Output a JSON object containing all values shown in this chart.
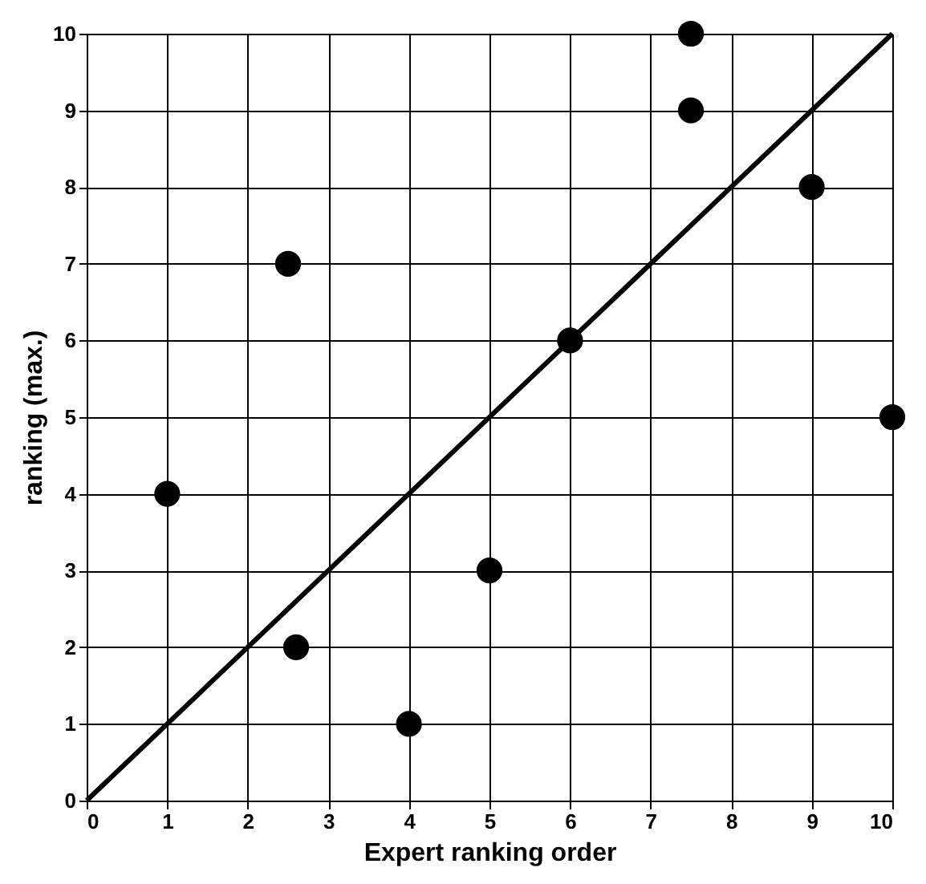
{
  "chart_data": {
    "type": "scatter",
    "xlabel": "Expert ranking order",
    "ylabel": "ranking (max.)",
    "xlim": [
      0,
      10
    ],
    "ylim": [
      0,
      10
    ],
    "xticks": [
      0,
      1,
      2,
      3,
      4,
      5,
      6,
      7,
      8,
      9,
      10
    ],
    "yticks": [
      0,
      1,
      2,
      3,
      4,
      5,
      6,
      7,
      8,
      9,
      10
    ],
    "grid": true,
    "series": [
      {
        "marker": "circle",
        "color": "#000000",
        "x": [
          1,
          2.5,
          2.6,
          4,
          5,
          6,
          7.5,
          7.5,
          9,
          10
        ],
        "values": [
          4,
          7,
          2,
          1,
          3,
          6,
          10,
          9,
          8,
          5
        ]
      },
      {
        "type": "line",
        "color": "#000000",
        "x": [
          0,
          10
        ],
        "values": [
          0,
          10
        ],
        "line_style": "solid",
        "marker": "none"
      }
    ]
  }
}
